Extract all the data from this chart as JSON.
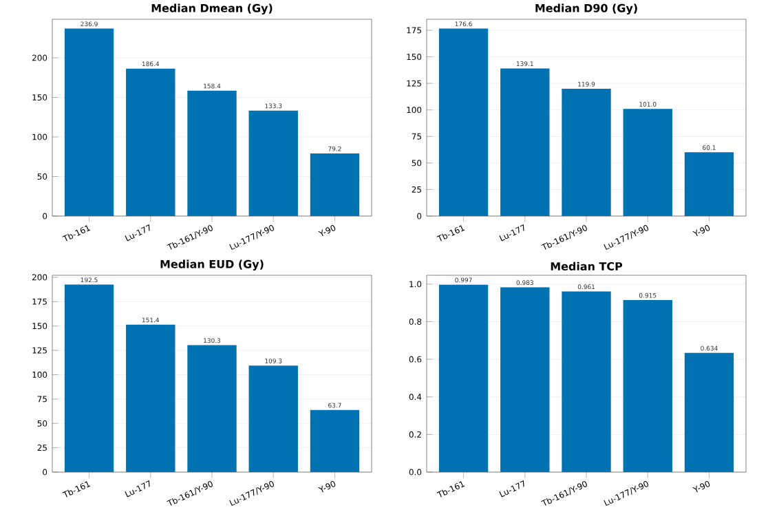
{
  "chart_data": [
    {
      "type": "bar",
      "title": "Median Dmean (Gy)",
      "categories": [
        "Tb-161",
        "Lu-177",
        "Tb-161/Y-90",
        "Lu-177/Y-90",
        "Y-90"
      ],
      "values": [
        236.9,
        186.4,
        158.4,
        133.3,
        79.2
      ],
      "value_labels": [
        "236.9",
        "186.4",
        "158.4",
        "133.3",
        "79.2"
      ],
      "color": "#0072b2",
      "ylim": [
        0,
        248.7
      ],
      "yticks": [
        0,
        50,
        100,
        150,
        200
      ],
      "grid": "y"
    },
    {
      "type": "bar",
      "title": "Median D90 (Gy)",
      "categories": [
        "Tb-161",
        "Lu-177",
        "Tb-161/Y-90",
        "Lu-177/Y-90",
        "Y-90"
      ],
      "values": [
        176.6,
        139.1,
        119.9,
        101.0,
        60.1
      ],
      "value_labels": [
        "176.6",
        "139.1",
        "119.9",
        "101.0",
        "60.1"
      ],
      "color": "#0072b2",
      "ylim": [
        0,
        185.4
      ],
      "yticks": [
        0,
        25,
        50,
        75,
        100,
        125,
        150,
        175
      ],
      "grid": "y"
    },
    {
      "type": "bar",
      "title": "Median EUD (Gy)",
      "categories": [
        "Tb-161",
        "Lu-177",
        "Tb-161/Y-90",
        "Lu-177/Y-90",
        "Y-90"
      ],
      "values": [
        192.5,
        151.4,
        130.3,
        109.3,
        63.7
      ],
      "value_labels": [
        "192.5",
        "151.4",
        "130.3",
        "109.3",
        "63.7"
      ],
      "color": "#0072b2",
      "ylim": [
        0,
        202.1
      ],
      "yticks": [
        0,
        25,
        50,
        75,
        100,
        125,
        150,
        175,
        200
      ],
      "grid": "y"
    },
    {
      "type": "bar",
      "title": "Median TCP",
      "categories": [
        "Tb-161",
        "Lu-177",
        "Tb-161/Y-90",
        "Lu-177/Y-90",
        "Y-90"
      ],
      "values": [
        0.997,
        0.983,
        0.961,
        0.915,
        0.634
      ],
      "value_labels": [
        "0.997",
        "0.983",
        "0.961",
        "0.915",
        "0.634"
      ],
      "color": "#0072b2",
      "ylim": [
        0,
        1.047
      ],
      "yticks": [
        {
          "value": 0,
          "label": "0.0"
        },
        {
          "value": 0.2,
          "label": "0.2"
        },
        {
          "value": 0.4,
          "label": "0.4"
        },
        {
          "value": 0.6,
          "label": "0.6"
        },
        {
          "value": 0.8,
          "label": "0.8"
        },
        {
          "value": 1.0,
          "label": "1.0"
        }
      ],
      "grid": "y"
    }
  ]
}
